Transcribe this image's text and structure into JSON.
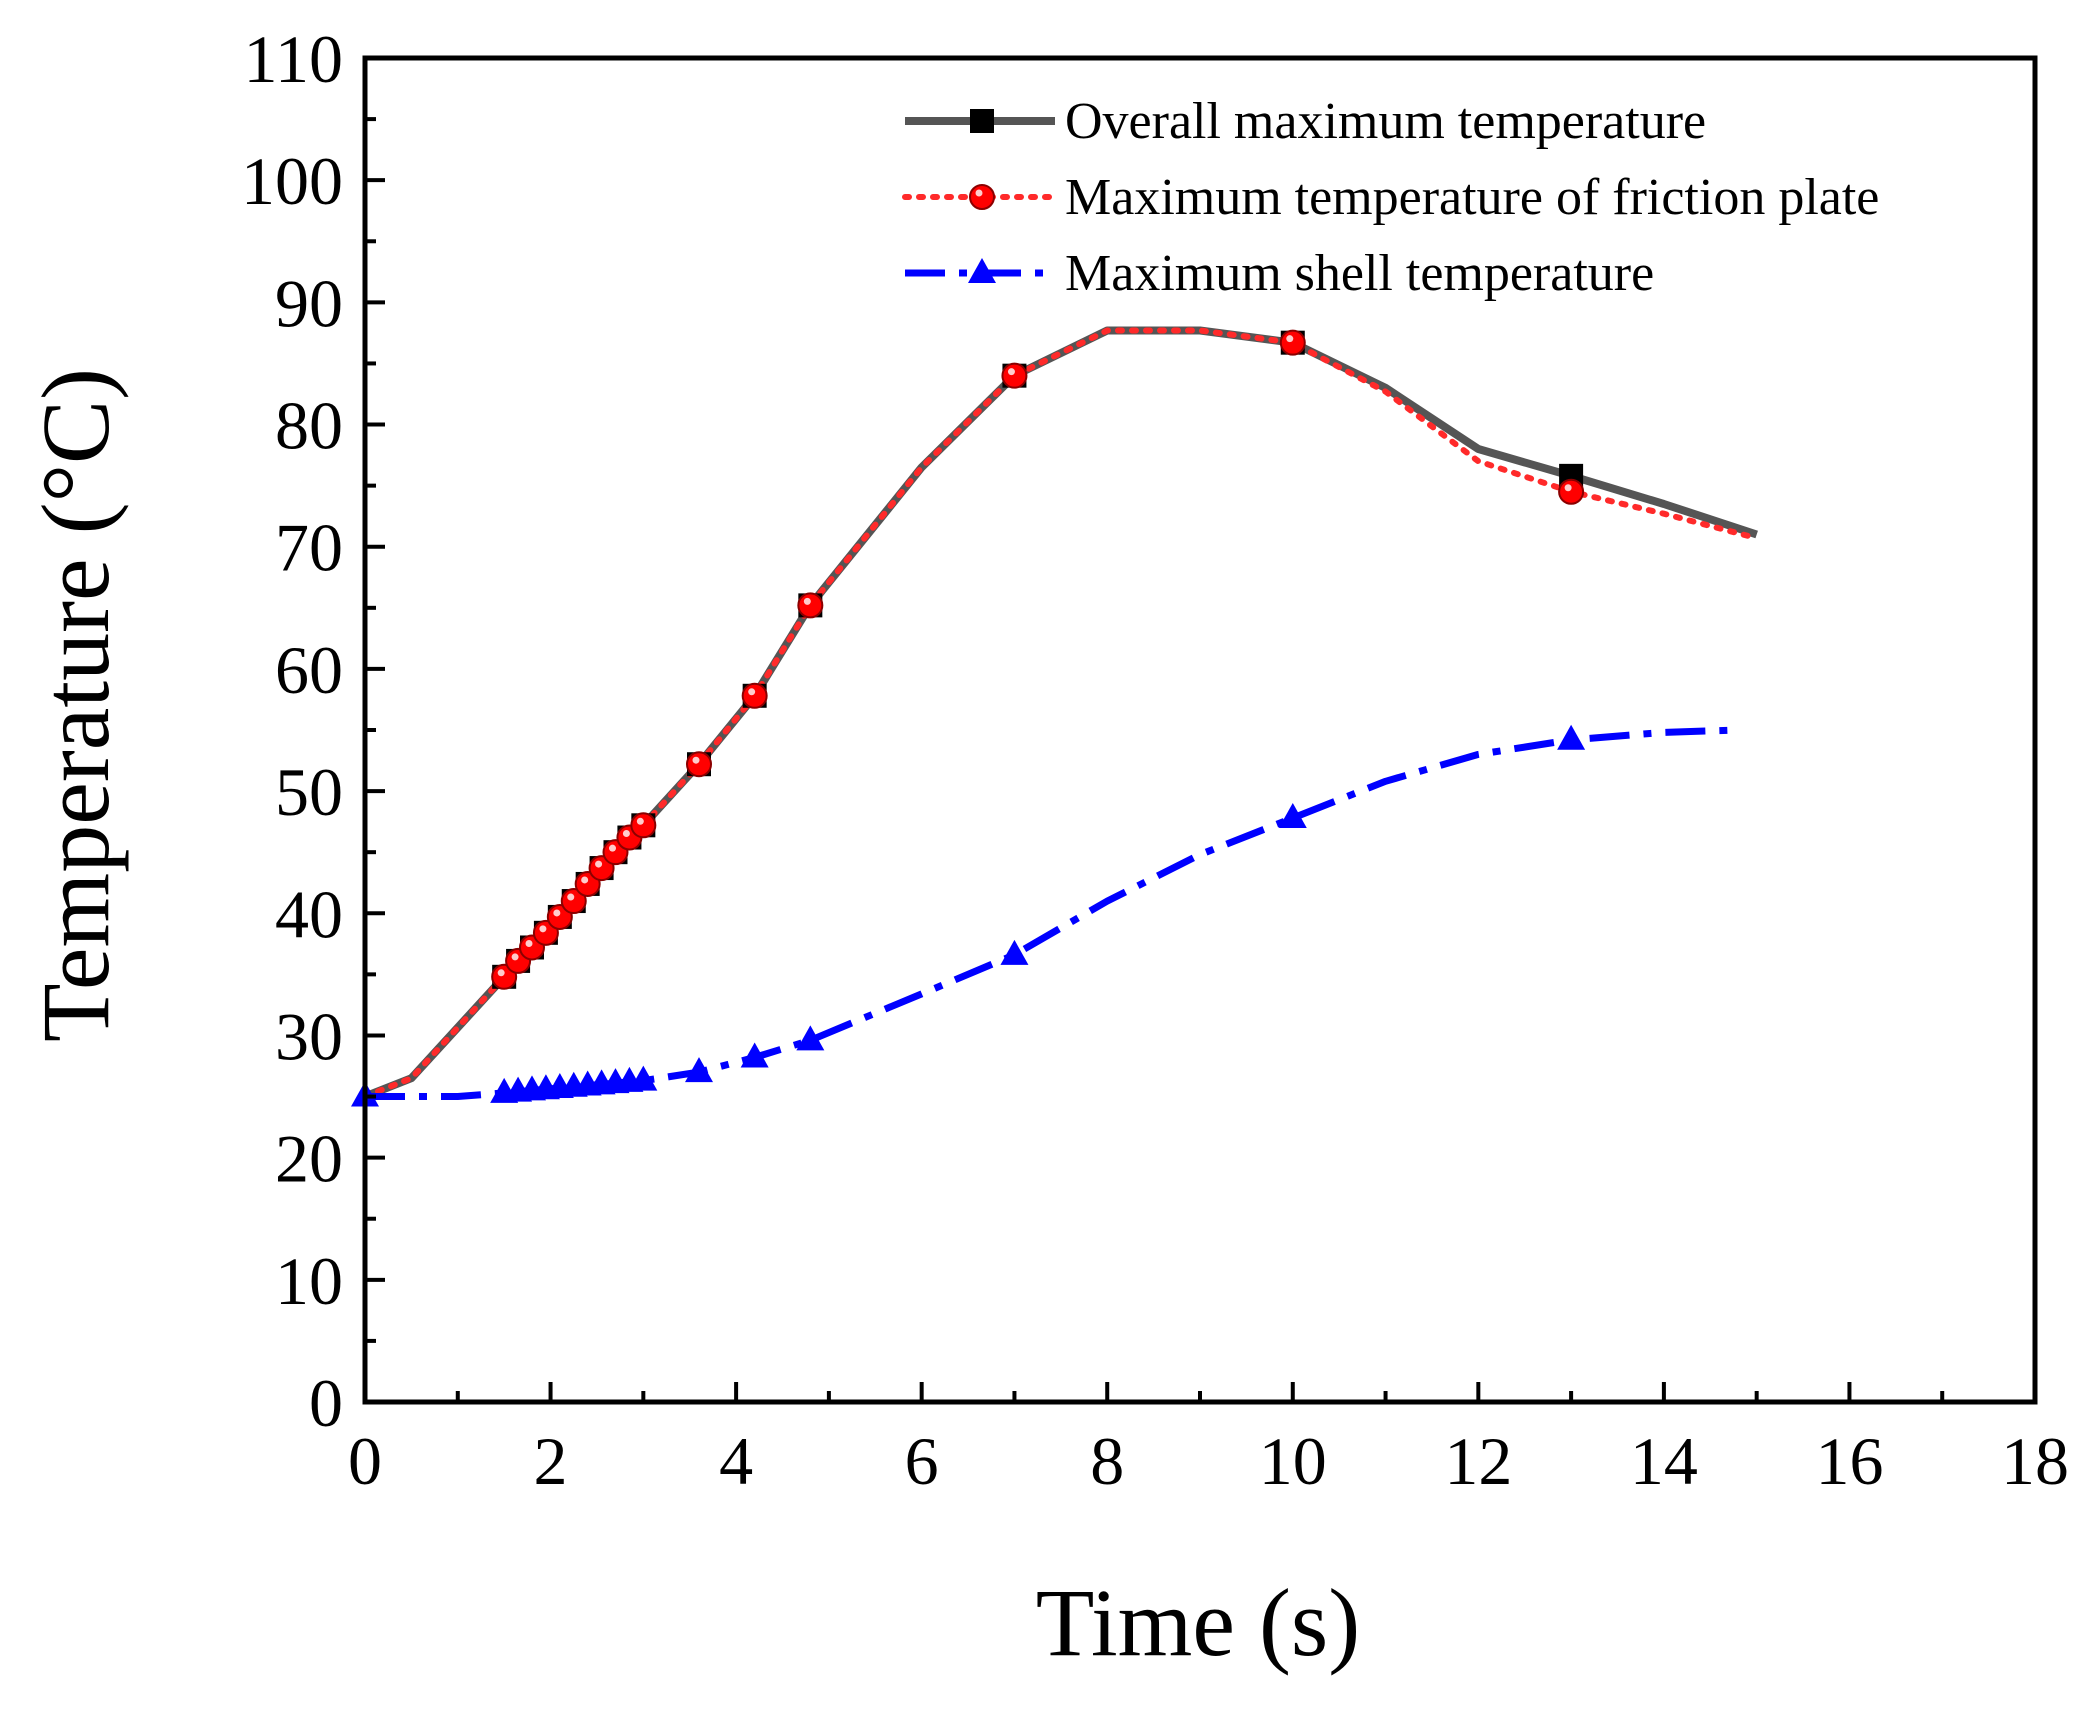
{
  "chart_data": {
    "type": "line",
    "title": "",
    "xlabel": "Time (s)",
    "ylabel": "Temperature (°C)",
    "xlim": [
      0,
      18
    ],
    "ylim": [
      0,
      110
    ],
    "xticks": [
      0,
      2,
      4,
      6,
      8,
      10,
      12,
      14,
      16,
      18
    ],
    "yticks": [
      0,
      10,
      20,
      30,
      40,
      50,
      60,
      70,
      80,
      90,
      100,
      110
    ],
    "grid": false,
    "legend_position": "top-right",
    "series": [
      {
        "name": "Overall maximum temperature",
        "color": "#555555",
        "marker": "square",
        "marker_fill": "#000000",
        "line_style": "solid",
        "x": [
          0,
          0.5,
          1.5,
          1.65,
          1.8,
          1.95,
          2.1,
          2.25,
          2.4,
          2.55,
          2.7,
          2.85,
          3.0,
          3.6,
          4.2,
          4.8,
          6.0,
          7.0,
          8.0,
          9.0,
          10.0,
          11.0,
          12.0,
          13.0,
          14.0,
          15.0
        ],
        "y": [
          25,
          26.5,
          34.8,
          36.1,
          37.2,
          38.4,
          39.7,
          41.0,
          42.4,
          43.7,
          45.0,
          46.2,
          47.2,
          52.2,
          57.8,
          65.2,
          76.5,
          84.0,
          87.7,
          87.7,
          86.7,
          83.0,
          78.0,
          75.8,
          73.5,
          71.0
        ],
        "marker_x": [
          1.5,
          1.65,
          1.8,
          1.95,
          2.1,
          2.25,
          2.4,
          2.55,
          2.7,
          2.85,
          3.0,
          3.6,
          4.2,
          4.8,
          7.0,
          10.0,
          13.0
        ],
        "marker_y": [
          34.8,
          36.1,
          37.2,
          38.4,
          39.7,
          41.0,
          42.4,
          43.7,
          45.0,
          46.2,
          47.2,
          52.2,
          57.8,
          65.2,
          84.0,
          86.7,
          75.8
        ]
      },
      {
        "name": "Maximum temperature of friction plate",
        "color": "#ff2a2a",
        "marker": "circle",
        "marker_fill": "#ff0000",
        "line_style": "dotted",
        "x": [
          0,
          0.5,
          1.5,
          1.65,
          1.8,
          1.95,
          2.1,
          2.25,
          2.4,
          2.55,
          2.7,
          2.85,
          3.0,
          3.6,
          4.2,
          4.8,
          6.0,
          7.0,
          8.0,
          9.0,
          10.0,
          11.0,
          12.0,
          13.0,
          14.0,
          15.0
        ],
        "y": [
          25,
          26.5,
          34.8,
          36.1,
          37.2,
          38.4,
          39.7,
          41.0,
          42.4,
          43.7,
          45.0,
          46.2,
          47.2,
          52.2,
          57.8,
          65.2,
          76.5,
          84.0,
          87.7,
          87.7,
          86.7,
          82.7,
          77.0,
          74.5,
          72.7,
          70.7
        ],
        "marker_x": [
          1.5,
          1.65,
          1.8,
          1.95,
          2.1,
          2.25,
          2.4,
          2.55,
          2.7,
          2.85,
          3.0,
          3.6,
          4.2,
          4.8,
          7.0,
          10.0,
          13.0
        ],
        "marker_y": [
          34.8,
          36.1,
          37.2,
          38.4,
          39.7,
          41.0,
          42.4,
          43.7,
          45.0,
          46.2,
          47.2,
          52.2,
          57.8,
          65.2,
          84.0,
          86.7,
          74.5
        ]
      },
      {
        "name": "Maximum shell temperature",
        "color": "#0000ff",
        "marker": "triangle",
        "marker_fill": "#0000ff",
        "line_style": "dashdot",
        "x": [
          0,
          1.0,
          1.5,
          1.65,
          1.8,
          1.95,
          2.1,
          2.25,
          2.4,
          2.55,
          2.7,
          2.85,
          3.0,
          3.6,
          4.2,
          4.8,
          6.0,
          7.0,
          8.0,
          9.0,
          10.0,
          11.0,
          12.0,
          13.0,
          14.0,
          14.8
        ],
        "y": [
          25,
          25,
          25.3,
          25.4,
          25.5,
          25.6,
          25.7,
          25.8,
          25.9,
          26.0,
          26.1,
          26.2,
          26.3,
          27.0,
          28.2,
          29.6,
          33.4,
          36.6,
          41.0,
          44.8,
          47.8,
          50.8,
          53.0,
          54.2,
          54.8,
          55.0
        ],
        "marker_x": [
          0,
          1.5,
          1.65,
          1.8,
          1.95,
          2.1,
          2.25,
          2.4,
          2.55,
          2.7,
          2.85,
          3.0,
          3.6,
          4.2,
          4.8,
          7.0,
          10.0,
          13.0
        ],
        "marker_y": [
          25,
          25.3,
          25.4,
          25.5,
          25.6,
          25.7,
          25.8,
          25.9,
          26.0,
          26.1,
          26.2,
          26.3,
          27.0,
          28.2,
          29.6,
          36.6,
          47.8,
          54.2
        ]
      }
    ]
  }
}
